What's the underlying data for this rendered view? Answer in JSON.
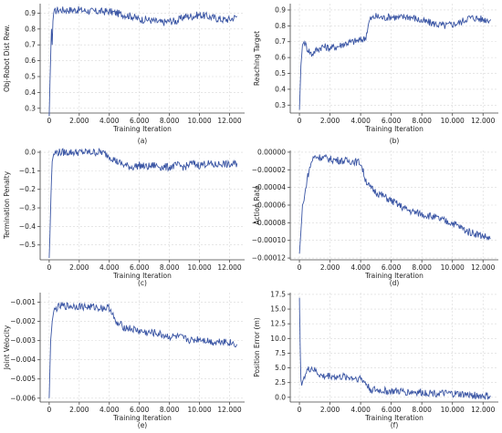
{
  "figure": {
    "x_ticks": [
      0,
      2000,
      4000,
      6000,
      8000,
      10000,
      12000
    ]
  },
  "series_color": "#3a55a4",
  "chart_data": [
    {
      "type": "line",
      "caption": "(a)",
      "xlabel": "Training Iteration",
      "ylabel": "Obj-Robot Dist Rew.",
      "xlim": [
        -600,
        13000
      ],
      "ylim": [
        0.27,
        0.96
      ],
      "yticks": [
        0.3,
        0.4,
        0.5,
        0.6,
        0.7,
        0.8,
        0.9
      ],
      "ytick_labels": [
        "0.3",
        "0.4",
        "0.5",
        "0.6",
        "0.7",
        "0.8",
        "0.9"
      ],
      "grid": true,
      "x": [
        0,
        50,
        100,
        150,
        200,
        250,
        300,
        400,
        500,
        700,
        1000,
        1500,
        2000,
        2500,
        3000,
        3500,
        4000,
        4500,
        5000,
        5500,
        6000,
        6500,
        7000,
        7500,
        8000,
        8500,
        9000,
        9500,
        10000,
        10500,
        11000,
        11500,
        12000,
        12500
      ],
      "y": [
        0.25,
        0.45,
        0.62,
        0.8,
        0.7,
        0.85,
        0.9,
        0.91,
        0.92,
        0.92,
        0.92,
        0.92,
        0.92,
        0.915,
        0.91,
        0.91,
        0.91,
        0.9,
        0.89,
        0.88,
        0.86,
        0.86,
        0.85,
        0.84,
        0.85,
        0.85,
        0.88,
        0.88,
        0.89,
        0.88,
        0.87,
        0.86,
        0.86,
        0.88
      ]
    },
    {
      "type": "line",
      "caption": "(b)",
      "xlabel": "Training Iteration",
      "ylabel": "Reaching Target",
      "xlim": [
        -600,
        13000
      ],
      "ylim": [
        0.25,
        0.94
      ],
      "yticks": [
        0.3,
        0.4,
        0.5,
        0.6,
        0.7,
        0.8,
        0.9
      ],
      "ytick_labels": [
        "0.3",
        "0.4",
        "0.5",
        "0.6",
        "0.7",
        "0.8",
        "0.9"
      ],
      "grid": true,
      "x": [
        0,
        100,
        200,
        300,
        500,
        800,
        1000,
        1500,
        2000,
        2500,
        3000,
        3500,
        4000,
        4300,
        4600,
        5000,
        5500,
        6000,
        6500,
        7000,
        7500,
        8000,
        8500,
        9000,
        9500,
        10000,
        10500,
        11000,
        11500,
        12000,
        12500
      ],
      "y": [
        0.27,
        0.55,
        0.68,
        0.7,
        0.66,
        0.62,
        0.64,
        0.67,
        0.66,
        0.67,
        0.69,
        0.7,
        0.71,
        0.72,
        0.84,
        0.86,
        0.85,
        0.86,
        0.85,
        0.86,
        0.85,
        0.83,
        0.82,
        0.81,
        0.8,
        0.81,
        0.82,
        0.85,
        0.85,
        0.84,
        0.84
      ]
    },
    {
      "type": "line",
      "caption": "(c)",
      "xlabel": "Training Iteration",
      "ylabel": "Termination Penalty",
      "xlim": [
        -600,
        13000
      ],
      "ylim": [
        -0.58,
        0.01
      ],
      "yticks": [
        0.0,
        -0.1,
        -0.2,
        -0.3,
        -0.4,
        -0.5
      ],
      "ytick_labels": [
        "0.0",
        "−0.1",
        "−0.2",
        "−0.3",
        "−0.4",
        "−0.5"
      ],
      "grid": true,
      "x": [
        0,
        50,
        100,
        150,
        200,
        300,
        500,
        1000,
        1500,
        2000,
        2500,
        3000,
        3500,
        4000,
        4500,
        5000,
        5500,
        6000,
        6500,
        7000,
        7500,
        8000,
        8500,
        9000,
        9500,
        10000,
        10500,
        11000,
        11500,
        12000,
        12500
      ],
      "y": [
        -0.57,
        -0.45,
        -0.3,
        -0.15,
        -0.05,
        -0.01,
        0.0,
        0.0,
        0.0,
        0.0,
        0.0,
        0.0,
        0.0,
        -0.02,
        -0.05,
        -0.07,
        -0.08,
        -0.07,
        -0.08,
        -0.07,
        -0.08,
        -0.08,
        -0.07,
        -0.08,
        -0.06,
        -0.07,
        -0.06,
        -0.07,
        -0.06,
        -0.07,
        -0.06
      ]
    },
    {
      "type": "line",
      "caption": "(d)",
      "xlabel": "Training Iteration",
      "ylabel": "Action Rate",
      "xlim": [
        -600,
        13000
      ],
      "ylim": [
        -0.000122,
        2e-06
      ],
      "yticks": [
        0.0,
        -2e-05,
        -4e-05,
        -6e-05,
        -8e-05,
        -0.0001,
        -0.00012
      ],
      "ytick_labels": [
        "0.00000",
        "−0.00002",
        "−0.00004",
        "−0.00006",
        "−0.00008",
        "−0.00010",
        "−0.00012"
      ],
      "grid": true,
      "x": [
        0,
        100,
        200,
        300,
        500,
        800,
        1000,
        1500,
        2000,
        2500,
        3000,
        3500,
        4000,
        4300,
        4600,
        5000,
        5500,
        6000,
        6500,
        7000,
        7500,
        8000,
        8500,
        9000,
        9500,
        10000,
        10500,
        11000,
        11500,
        12000,
        12500
      ],
      "y": [
        -0.000115,
        -9e-05,
        -6e-05,
        -5.5e-05,
        -3e-05,
        -1e-05,
        -5e-06,
        -6e-06,
        -8e-06,
        -9e-06,
        -1e-05,
        -1e-05,
        -1.2e-05,
        -3e-05,
        -4e-05,
        -4.5e-05,
        -5e-05,
        -5.5e-05,
        -6e-05,
        -6.5e-05,
        -6.8e-05,
        -7e-05,
        -7.2e-05,
        -7.5e-05,
        -7.8e-05,
        -8e-05,
        -8.5e-05,
        -9e-05,
        -9.2e-05,
        -9.5e-05,
        -9.8e-05
      ]
    },
    {
      "type": "line",
      "caption": "(e)",
      "xlabel": "Training Iteration",
      "ylabel": "Joint Velocity",
      "xlim": [
        -600,
        13000
      ],
      "ylim": [
        -0.0062,
        -0.0005
      ],
      "yticks": [
        -0.001,
        -0.002,
        -0.003,
        -0.004,
        -0.005,
        -0.006
      ],
      "ytick_labels": [
        "−0.001",
        "−0.002",
        "−0.003",
        "−0.004",
        "−0.005",
        "−0.006"
      ],
      "grid": true,
      "x": [
        0,
        50,
        100,
        200,
        300,
        500,
        800,
        1000,
        1500,
        2000,
        2500,
        3000,
        3500,
        4000,
        4200,
        4400,
        4800,
        5000,
        5500,
        6000,
        6500,
        7000,
        7500,
        8000,
        8500,
        9000,
        9500,
        10000,
        10500,
        11000,
        11500,
        12000,
        12500
      ],
      "y": [
        -0.006,
        -0.0045,
        -0.003,
        -0.002,
        -0.0015,
        -0.0013,
        -0.0012,
        -0.0012,
        -0.0012,
        -0.0012,
        -0.00125,
        -0.00125,
        -0.0013,
        -0.0013,
        -0.0015,
        -0.0021,
        -0.0022,
        -0.0023,
        -0.0024,
        -0.0025,
        -0.0026,
        -0.0026,
        -0.0027,
        -0.0028,
        -0.0028,
        -0.0029,
        -0.003,
        -0.0029,
        -0.003,
        -0.0031,
        -0.003,
        -0.0031,
        -0.0032
      ]
    },
    {
      "type": "line",
      "caption": "(f)",
      "xlabel": "Training Iteration",
      "ylabel": "Position Error (m)",
      "xlim": [
        -600,
        13000
      ],
      "ylim": [
        -0.8,
        17.8
      ],
      "yticks": [
        0.0,
        2.5,
        5.0,
        7.5,
        10.0,
        12.5,
        15.0,
        17.5
      ],
      "ytick_labels": [
        "0.0",
        "2.5",
        "5.0",
        "7.5",
        "10.0",
        "12.5",
        "15.0",
        "17.5"
      ],
      "grid": true,
      "x": [
        0,
        30,
        60,
        100,
        150,
        200,
        300,
        500,
        800,
        1000,
        1500,
        2000,
        2500,
        3000,
        3500,
        4000,
        4300,
        4600,
        5000,
        5500,
        6000,
        6500,
        7000,
        7500,
        8000,
        8500,
        9000,
        9500,
        10000,
        10500,
        11000,
        11500,
        12000,
        12500
      ],
      "y": [
        16.9,
        12.0,
        7.0,
        3.0,
        2.0,
        2.6,
        3.5,
        4.5,
        5.0,
        4.5,
        3.5,
        3.7,
        3.4,
        3.5,
        3.3,
        3.2,
        2.5,
        1.4,
        1.2,
        1.1,
        1.0,
        1.0,
        0.9,
        0.9,
        0.8,
        0.8,
        0.7,
        0.6,
        0.6,
        0.5,
        0.4,
        0.3,
        0.2,
        0.15
      ]
    }
  ]
}
